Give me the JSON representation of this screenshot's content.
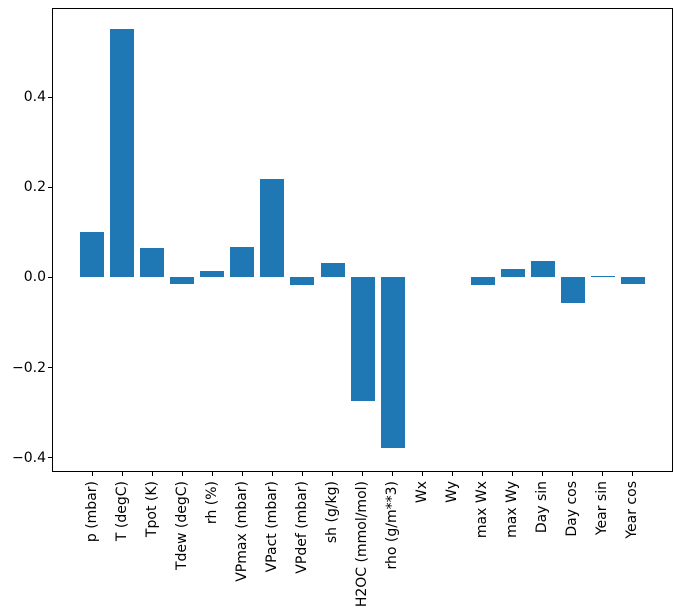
{
  "chart_data": {
    "type": "bar",
    "title": "",
    "categories": [
      "p (mbar)",
      "T (degC)",
      "Tpot (K)",
      "Tdew (degC)",
      "rh (%)",
      "VPmax (mbar)",
      "VPact (mbar)",
      "VPdef (mbar)",
      "sh (g/kg)",
      "H2OC (mmol/mol)",
      "rho (g/m**3)",
      "Wx",
      "Wy",
      "max Wx",
      "max Wy",
      "Day sin",
      "Day cos",
      "Year sin",
      "Year cos"
    ],
    "values": [
      0.1,
      0.552,
      0.065,
      -0.015,
      0.014,
      0.068,
      0.219,
      -0.017,
      0.033,
      -0.274,
      -0.379,
      0.0,
      0.0,
      -0.016,
      0.019,
      0.036,
      -0.057,
      0.003,
      -0.014
    ],
    "yticks": [
      {
        "value": 0.4,
        "label": "0.4"
      },
      {
        "value": 0.2,
        "label": "0.2"
      },
      {
        "value": 0.0,
        "label": "0.0"
      },
      {
        "value": -0.2,
        "label": "−0.2"
      },
      {
        "value": -0.4,
        "label": "−0.4"
      }
    ],
    "ylim": [
      -0.432,
      0.598
    ],
    "bar_width_fraction": 0.8,
    "grid": false,
    "legend": false,
    "xlabel": "",
    "ylabel": "",
    "bar_color": "#1f77b4",
    "spine_color": "#000000",
    "background_color": "#ffffff"
  }
}
